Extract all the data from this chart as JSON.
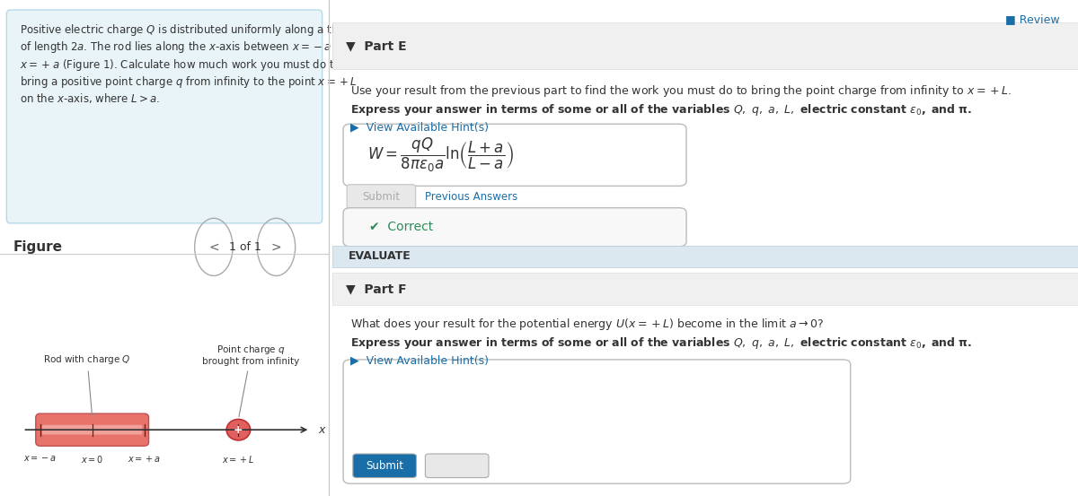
{
  "bg_color": "#ffffff",
  "left_panel_bg": "#e8f4f8",
  "figure_label": "Figure",
  "nav_text": "1 of 1",
  "part_e_label": "Part E",
  "hint_text": "View Available Hint(s)",
  "submit_text": "Submit",
  "prev_answers_text": "Previous Answers",
  "correct_text": "✓  Correct",
  "evaluate_label": "EVALUATE",
  "part_f_label": "Part F",
  "review_text": "■ Review",
  "rod_color": "#e8736a",
  "rod_highlight": "#f5b0aa",
  "axis_color": "#333333",
  "text_color": "#333333",
  "blue_link_color": "#1a6ea8",
  "green_check_color": "#2e8b57",
  "divider_color": "#cccccc",
  "evaluate_bg": "#dce8f0",
  "header_bg": "#f0f0f0",
  "formula_box_bg": "#ffffff",
  "correct_box_bg": "#f8f8f8",
  "part_e_question": "Use your result from the previous part to find the work you must do to bring the point charge from infinity to $x = +L$.",
  "part_e_bold": "Express your answer in terms of some or all of the variables $Q$, $q$, $a$, $L$, electric constant $\\epsilon_0$, and $\\pi$.",
  "part_f_question": "What does your result for the potential energy $U(x = +L)$ become in the limit $a \\to 0$?",
  "part_f_bold": "Express your answer in terms of some or all of the variables $Q$, $q$, $a$, $L$, electric constant $\\epsilon_0$, and $\\pi$."
}
